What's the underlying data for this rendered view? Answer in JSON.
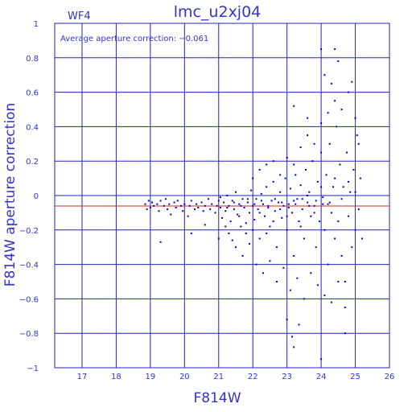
{
  "chart_data": {
    "type": "scatter",
    "title": "lmc_u2xj04",
    "panel_label": "WF4",
    "annotation": "Average aperture correction: −0.061",
    "xlabel": "F814W",
    "ylabel": "F814W aperture correction",
    "xlim": [
      16.2,
      26.0
    ],
    "ylim": [
      -1.0,
      1.0
    ],
    "xticks": [
      "17",
      "18",
      "19",
      "20",
      "21",
      "22",
      "23",
      "24",
      "25",
      "26"
    ],
    "yticks": [
      "1",
      "0.8",
      "0.6",
      "0.4",
      "0.2",
      "0",
      "−0.2",
      "−0.4",
      "−0.6",
      "−0.8",
      "−1"
    ],
    "grid": true,
    "reference_line": {
      "y": -0.061,
      "color": "#dd2222"
    },
    "marker_color": "#0000cc",
    "axis_color": "#3333cc",
    "points": [
      [
        18.85,
        -0.05
      ],
      [
        18.9,
        -0.08
      ],
      [
        18.95,
        -0.03
      ],
      [
        19.0,
        -0.07
      ],
      [
        19.05,
        -0.04
      ],
      [
        19.1,
        -0.06
      ],
      [
        19.2,
        -0.05
      ],
      [
        19.25,
        -0.09
      ],
      [
        19.3,
        -0.03
      ],
      [
        19.4,
        -0.06
      ],
      [
        19.45,
        -0.02
      ],
      [
        19.5,
        -0.08
      ],
      [
        19.55,
        -0.05
      ],
      [
        19.6,
        -0.11
      ],
      [
        19.7,
        -0.04
      ],
      [
        19.75,
        -0.07
      ],
      [
        19.8,
        -0.03
      ],
      [
        19.9,
        -0.06
      ],
      [
        19.95,
        -0.09
      ],
      [
        20.0,
        -0.05
      ],
      [
        20.1,
        -0.12
      ],
      [
        20.15,
        -0.06
      ],
      [
        20.2,
        -0.03
      ],
      [
        20.3,
        -0.08
      ],
      [
        20.35,
        -0.05
      ],
      [
        20.4,
        -0.07
      ],
      [
        20.5,
        -0.04
      ],
      [
        20.55,
        -0.09
      ],
      [
        20.6,
        -0.06
      ],
      [
        20.7,
        -0.02
      ],
      [
        20.75,
        -0.08
      ],
      [
        20.8,
        -0.05
      ],
      [
        20.9,
        -0.1
      ],
      [
        20.95,
        -0.06
      ],
      [
        21.0,
        -0.03
      ],
      [
        21.05,
        -0.07
      ],
      [
        21.1,
        -0.13
      ],
      [
        21.15,
        -0.04
      ],
      [
        21.2,
        -0.09
      ],
      [
        21.25,
        0.0
      ],
      [
        21.3,
        -0.06
      ],
      [
        21.35,
        -0.15
      ],
      [
        21.4,
        -0.03
      ],
      [
        21.45,
        -0.08
      ],
      [
        21.5,
        0.02
      ],
      [
        21.55,
        -0.11
      ],
      [
        21.6,
        -0.05
      ],
      [
        21.65,
        -0.18
      ],
      [
        21.7,
        -0.02
      ],
      [
        21.75,
        -0.07
      ],
      [
        21.8,
        -0.22
      ],
      [
        21.85,
        -0.04
      ],
      [
        21.9,
        -0.1
      ],
      [
        21.95,
        0.03
      ],
      [
        22.0,
        -0.06
      ],
      [
        22.05,
        -0.14
      ],
      [
        22.1,
        -0.02
      ],
      [
        22.15,
        -0.08
      ],
      [
        22.2,
        -0.25
      ],
      [
        22.25,
        0.01
      ],
      [
        22.3,
        -0.05
      ],
      [
        22.35,
        -0.12
      ],
      [
        22.4,
        0.05
      ],
      [
        22.45,
        -0.07
      ],
      [
        22.5,
        -0.18
      ],
      [
        22.55,
        -0.03
      ],
      [
        22.6,
        0.08
      ],
      [
        22.65,
        -0.09
      ],
      [
        22.7,
        -0.3
      ],
      [
        22.75,
        -0.04
      ],
      [
        22.8,
        0.02
      ],
      [
        22.85,
        -0.13
      ],
      [
        22.9,
        -0.06
      ],
      [
        22.95,
        0.1
      ],
      [
        23.0,
        -0.2
      ],
      [
        23.05,
        -0.05
      ],
      [
        23.1,
        0.04
      ],
      [
        23.15,
        -0.1
      ],
      [
        23.2,
        -0.35
      ],
      [
        23.25,
        0.12
      ],
      [
        23.3,
        -0.02
      ],
      [
        23.35,
        -0.15
      ],
      [
        23.4,
        0.06
      ],
      [
        23.45,
        -0.08
      ],
      [
        23.5,
        -0.25
      ],
      [
        23.55,
        0.15
      ],
      [
        23.6,
        -0.04
      ],
      [
        23.65,
        0.02
      ],
      [
        23.7,
        -0.12
      ],
      [
        23.75,
        0.2
      ],
      [
        23.8,
        -0.06
      ],
      [
        23.85,
        -0.3
      ],
      [
        23.9,
        0.08
      ],
      [
        23.95,
        -0.15
      ],
      [
        24.0,
        0.25
      ],
      [
        24.05,
        -0.05
      ],
      [
        24.1,
        -0.2
      ],
      [
        24.15,
        0.12
      ],
      [
        24.2,
        -0.4
      ],
      [
        24.25,
        0.3
      ],
      [
        24.3,
        -0.1
      ],
      [
        24.35,
        0.05
      ],
      [
        24.4,
        -0.25
      ],
      [
        24.45,
        0.4
      ],
      [
        24.5,
        -0.15
      ],
      [
        24.55,
        0.18
      ],
      [
        24.6,
        -0.35
      ],
      [
        24.65,
        0.05
      ],
      [
        24.7,
        -0.5
      ],
      [
        24.75,
        0.25
      ],
      [
        24.8,
        -0.12
      ],
      [
        24.85,
        0.02
      ],
      [
        24.9,
        -0.3
      ],
      [
        24.95,
        0.15
      ],
      [
        25.0,
        -0.2
      ],
      [
        25.05,
        0.35
      ],
      [
        25.1,
        -0.08
      ],
      [
        25.15,
        0.1
      ],
      [
        25.2,
        -0.25
      ],
      [
        21.3,
        -0.22
      ],
      [
        21.5,
        -0.3
      ],
      [
        21.7,
        -0.35
      ],
      [
        21.9,
        -0.28
      ],
      [
        22.1,
        -0.4
      ],
      [
        22.3,
        -0.45
      ],
      [
        22.5,
        -0.38
      ],
      [
        22.7,
        -0.5
      ],
      [
        22.9,
        -0.42
      ],
      [
        23.1,
        -0.55
      ],
      [
        23.3,
        -0.48
      ],
      [
        23.5,
        -0.6
      ],
      [
        23.7,
        -0.45
      ],
      [
        23.9,
        -0.52
      ],
      [
        24.1,
        -0.58
      ],
      [
        24.3,
        -0.62
      ],
      [
        24.5,
        -0.5
      ],
      [
        24.7,
        -0.65
      ],
      [
        22.0,
        0.1
      ],
      [
        22.2,
        0.15
      ],
      [
        22.4,
        0.18
      ],
      [
        22.6,
        0.2
      ],
      [
        22.8,
        0.12
      ],
      [
        23.0,
        0.22
      ],
      [
        23.2,
        0.18
      ],
      [
        23.4,
        0.28
      ],
      [
        23.6,
        0.35
      ],
      [
        23.8,
        0.3
      ],
      [
        24.0,
        0.42
      ],
      [
        24.2,
        0.48
      ],
      [
        24.4,
        0.55
      ],
      [
        24.6,
        0.5
      ],
      [
        24.8,
        0.6
      ],
      [
        25.0,
        0.45
      ],
      [
        23.2,
        0.52
      ],
      [
        23.6,
        0.45
      ],
      [
        24.1,
        0.7
      ],
      [
        24.3,
        0.65
      ],
      [
        24.5,
        0.78
      ],
      [
        24.0,
        0.85
      ],
      [
        24.4,
        0.85
      ],
      [
        24.9,
        0.66
      ],
      [
        25.1,
        0.3
      ],
      [
        23.0,
        -0.72
      ],
      [
        23.15,
        -0.82
      ],
      [
        23.35,
        -0.75
      ],
      [
        24.0,
        -0.95
      ],
      [
        24.7,
        -0.8
      ],
      [
        23.2,
        -0.88
      ],
      [
        19.3,
        -0.27
      ],
      [
        20.2,
        -0.22
      ],
      [
        20.6,
        -0.17
      ],
      [
        21.0,
        -0.25
      ],
      [
        21.2,
        -0.18
      ],
      [
        21.4,
        -0.26
      ],
      [
        21.6,
        -0.12
      ],
      [
        21.8,
        -0.16
      ],
      [
        22.0,
        -0.2
      ],
      [
        22.2,
        -0.1
      ],
      [
        22.4,
        -0.22
      ],
      [
        22.6,
        -0.15
      ],
      [
        22.8,
        -0.08
      ],
      [
        23.0,
        -0.12
      ],
      [
        23.2,
        -0.03
      ],
      [
        23.4,
        -0.18
      ],
      [
        23.6,
        0.0
      ],
      [
        23.8,
        -0.1
      ],
      [
        24.0,
        0.05
      ],
      [
        24.2,
        -0.05
      ],
      [
        24.4,
        0.1
      ],
      [
        24.6,
        -0.02
      ],
      [
        24.8,
        0.08
      ],
      [
        25.0,
        0.02
      ],
      [
        21.05,
        -0.01
      ],
      [
        21.25,
        -0.07
      ],
      [
        21.45,
        -0.04
      ],
      [
        21.65,
        -0.06
      ],
      [
        21.85,
        -0.02
      ],
      [
        22.05,
        -0.05
      ],
      [
        22.25,
        -0.03
      ],
      [
        22.45,
        -0.06
      ],
      [
        22.65,
        -0.02
      ],
      [
        22.85,
        -0.04
      ],
      [
        23.05,
        -0.07
      ],
      [
        23.25,
        -0.05
      ],
      [
        23.45,
        -0.02
      ],
      [
        23.65,
        -0.06
      ],
      [
        23.85,
        -0.03
      ],
      [
        24.05,
        -0.01
      ],
      [
        24.25,
        -0.04
      ]
    ]
  }
}
